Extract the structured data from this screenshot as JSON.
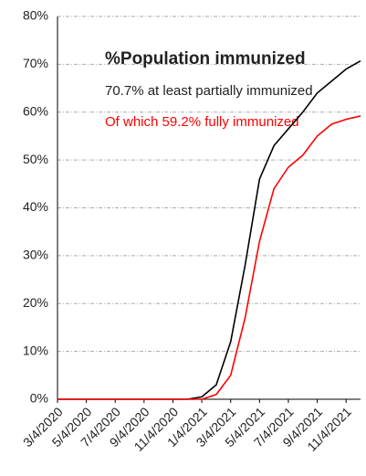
{
  "chart_data": {
    "type": "line",
    "annotations": [
      "%Population immunized",
      "70.7% at least partially immunized",
      "Of which 59.2% fully immunized"
    ],
    "categories": [
      "3/4/2020",
      null,
      "5/4/2020",
      null,
      "7/4/2020",
      null,
      "9/4/2020",
      null,
      "11/4/2020",
      null,
      "1/4/2021",
      null,
      "3/4/2021",
      null,
      "5/4/2021",
      null,
      "7/4/2021",
      null,
      "9/4/2021",
      null,
      "11/4/2021",
      null
    ],
    "series": [
      {
        "color": "#000000",
        "values": [
          0,
          0,
          0,
          0,
          0,
          0,
          0,
          0,
          0,
          0,
          0.5,
          3,
          12,
          28,
          46,
          53,
          56.5,
          60,
          64,
          66.5,
          69,
          70.7
        ]
      },
      {
        "color": "#ff0000",
        "values": [
          0,
          0,
          0,
          0,
          0,
          0,
          0,
          0,
          0,
          0,
          0,
          1,
          5,
          17,
          33,
          44,
          48.5,
          51,
          55,
          57.5,
          58.5,
          59.2
        ]
      }
    ],
    "ylim": [
      0,
      80
    ],
    "yticks": [
      {
        "value": 0,
        "label": "0%"
      },
      {
        "value": 10,
        "label": "10%"
      },
      {
        "value": 20,
        "label": "20%"
      },
      {
        "value": 30,
        "label": "30%"
      },
      {
        "value": 40,
        "label": "40%"
      },
      {
        "value": 50,
        "label": "50%"
      },
      {
        "value": 60,
        "label": "60%"
      },
      {
        "value": 70,
        "label": "70%"
      },
      {
        "value": 80,
        "label": "80%"
      }
    ],
    "grid": true
  }
}
